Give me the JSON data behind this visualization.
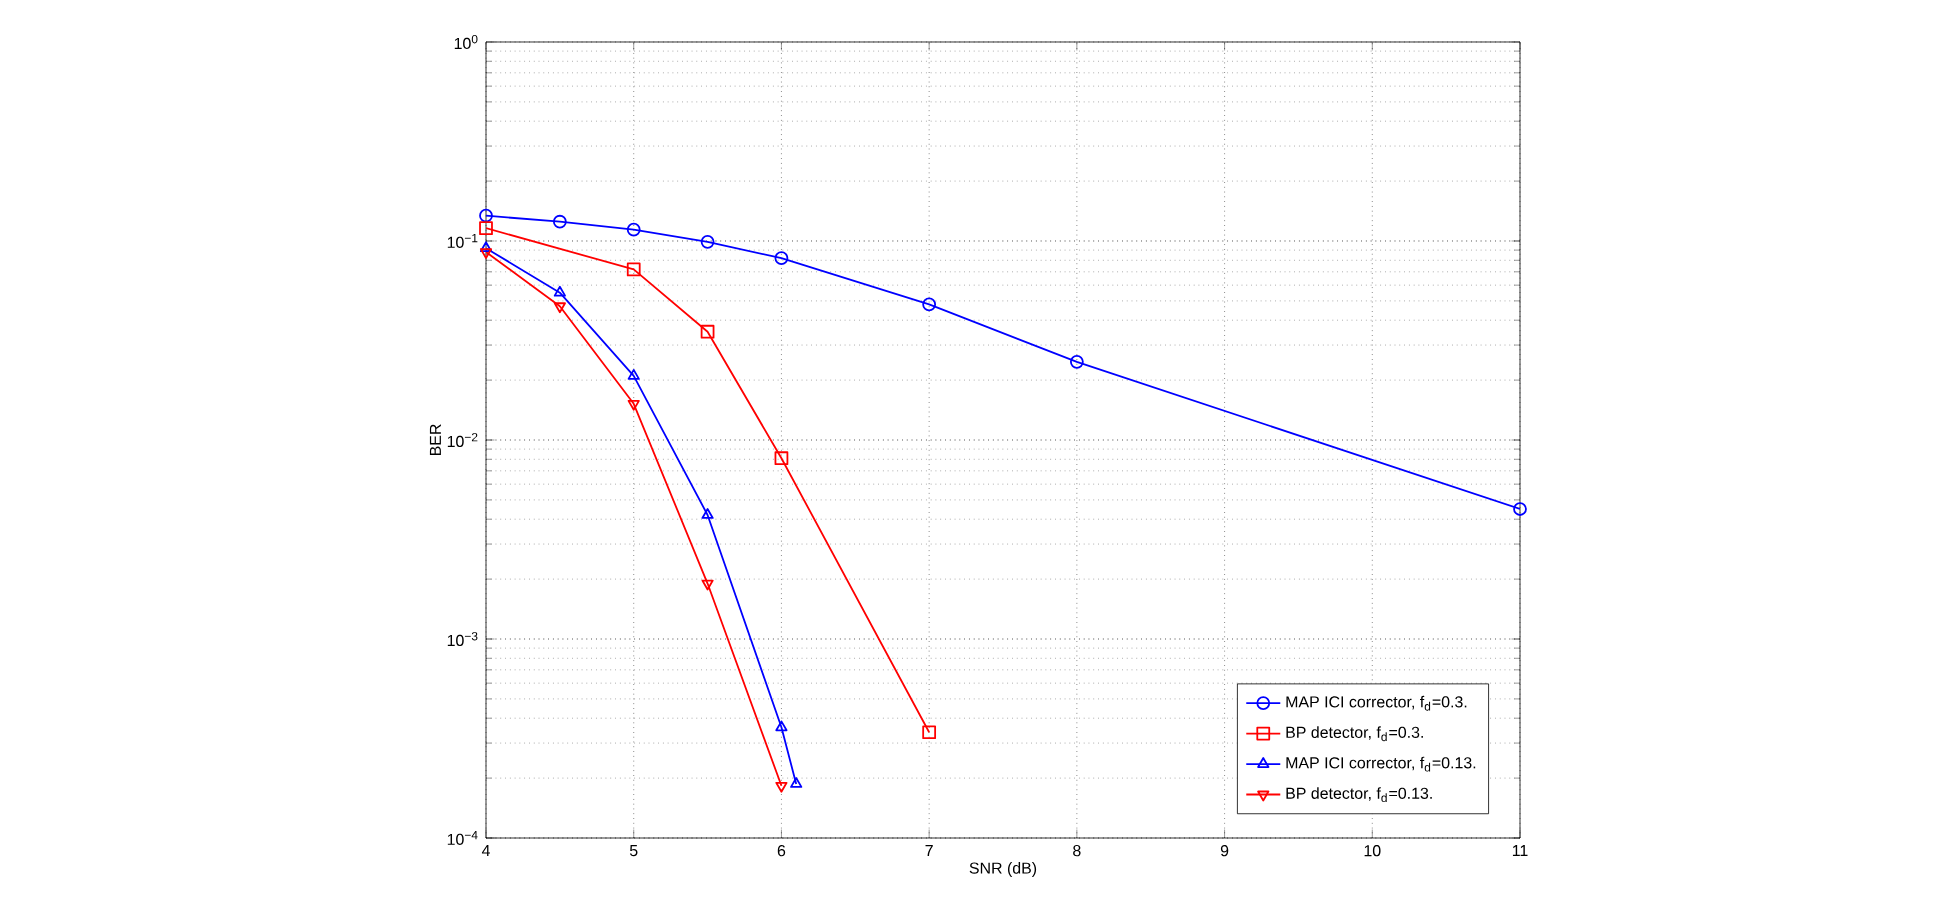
{
  "chart_data": {
    "type": "line",
    "xlabel": "SNR (dB)",
    "ylabel": "BER",
    "log": "y",
    "grid": true,
    "legend": "bottom right",
    "line_style": "solid",
    "xlim": [
      4,
      11
    ],
    "xticks": [
      4,
      5,
      6,
      7,
      8,
      9,
      10,
      11
    ],
    "ylim": [
      0.0001,
      1
    ],
    "yticks": [
      {
        "value": 0.0001,
        "label": "10$^{−4}$"
      },
      {
        "value": 0.001,
        "label": "10$^{−3}$"
      },
      {
        "value": 0.01,
        "label": "10$^{−2}$"
      },
      {
        "value": 0.1,
        "label": "10$^{−1}$"
      },
      {
        "value": 1,
        "label": "10$^{0}$"
      }
    ],
    "series": [
      {
        "name": "MAP ICI corrector, f$_{d}$=0.3.",
        "color": "#0000ff",
        "marker": "circle",
        "x": [
          4,
          4.5,
          5,
          5.5,
          6,
          7,
          8,
          11
        ],
        "values": [
          0.134,
          0.125,
          0.114,
          0.099,
          0.082,
          0.048,
          0.0247,
          0.0045
        ]
      },
      {
        "name": "BP detector, f$_{d}$=0.3.",
        "color": "#ff0000",
        "marker": "square",
        "x": [
          4,
          5,
          5.5,
          6,
          7
        ],
        "values": [
          0.116,
          0.072,
          0.035,
          0.0081,
          0.00034
        ]
      },
      {
        "name": "MAP ICI corrector, f$_{d}$=0.13.",
        "color": "#0000ff",
        "marker": "triangle",
        "x": [
          4,
          4.5,
          5,
          5.5,
          6,
          6.1
        ],
        "values": [
          0.092,
          0.055,
          0.021,
          0.0042,
          0.00036,
          0.000187
        ]
      },
      {
        "name": "BP detector, f$_{d}$=0.13.",
        "color": "#ff0000",
        "marker": "triangle-down",
        "x": [
          4,
          4.5,
          5,
          5.5,
          6
        ],
        "values": [
          0.088,
          0.047,
          0.0152,
          0.0019,
          0.000183
        ]
      }
    ]
  }
}
